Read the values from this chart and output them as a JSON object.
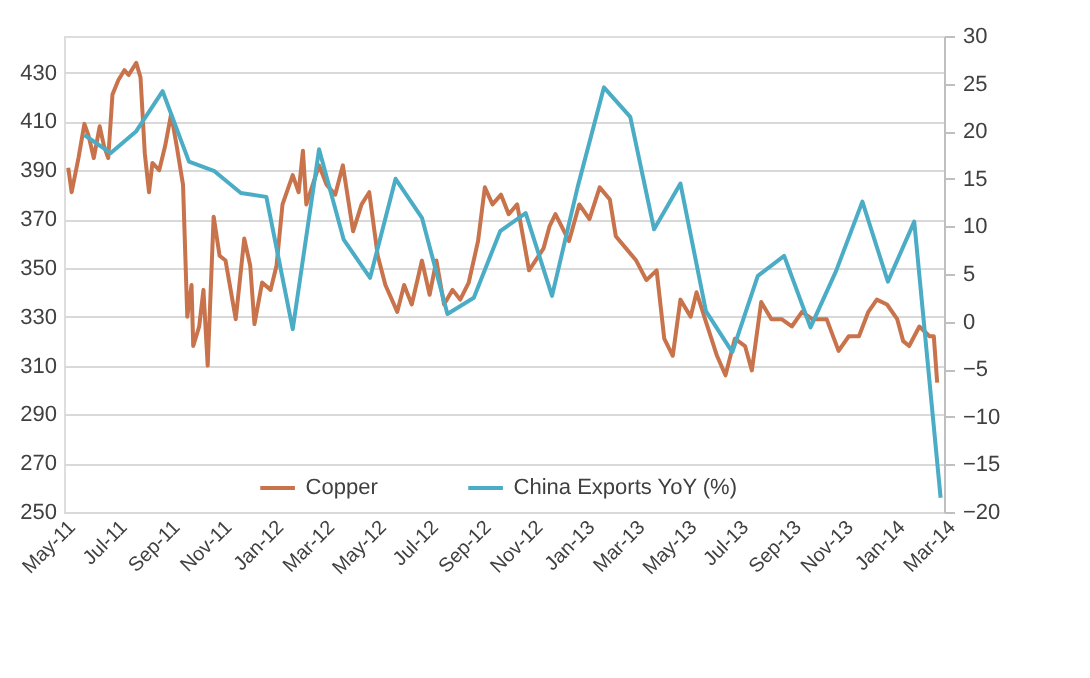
{
  "chart_data": {
    "type": "line",
    "xlim": [
      "2011-05-01",
      "2014-03-01"
    ],
    "xticks": [
      {
        "value": "2011-05-01",
        "label": "May-11"
      },
      {
        "value": "2011-07-01",
        "label": "Jul-11"
      },
      {
        "value": "2011-09-01",
        "label": "Sep-11"
      },
      {
        "value": "2011-11-01",
        "label": "Nov-11"
      },
      {
        "value": "2012-01-01",
        "label": "Jan-12"
      },
      {
        "value": "2012-03-01",
        "label": "Mar-12"
      },
      {
        "value": "2012-05-01",
        "label": "May-12"
      },
      {
        "value": "2012-07-01",
        "label": "Jul-12"
      },
      {
        "value": "2012-09-01",
        "label": "Sep-12"
      },
      {
        "value": "2012-11-01",
        "label": "Nov-12"
      },
      {
        "value": "2013-01-01",
        "label": "Jan-13"
      },
      {
        "value": "2013-03-01",
        "label": "Mar-13"
      },
      {
        "value": "2013-05-01",
        "label": "May-13"
      },
      {
        "value": "2013-07-01",
        "label": "Jul-13"
      },
      {
        "value": "2013-09-01",
        "label": "Sep-13"
      },
      {
        "value": "2013-11-01",
        "label": "Nov-13"
      },
      {
        "value": "2014-01-01",
        "label": "Jan-14"
      },
      {
        "value": "2014-03-01",
        "label": "Mar-14"
      }
    ],
    "ylim": [
      250,
      445
    ],
    "yticks": [
      250,
      270,
      290,
      310,
      330,
      350,
      370,
      390,
      410,
      430
    ],
    "y2lim": [
      -20,
      30
    ],
    "y2ticks": [
      -20,
      -15,
      -10,
      -5,
      0,
      5,
      10,
      15,
      20,
      25,
      30
    ],
    "grid": "y",
    "legend": "bottom",
    "line_style": "solid",
    "marker": "none",
    "series": [
      {
        "name": "Copper",
        "color": "#c8734b",
        "x": [
          "2011-05-06",
          "2011-05-10",
          "2011-05-18",
          "2011-05-25",
          "2011-05-30",
          "2011-06-05",
          "2011-06-12",
          "2011-06-17",
          "2011-06-22",
          "2011-06-27",
          "2011-07-04",
          "2011-07-11",
          "2011-07-16",
          "2011-07-25",
          "2011-07-30",
          "2011-08-04",
          "2011-08-09",
          "2011-08-13",
          "2011-08-21",
          "2011-08-28",
          "2011-09-04",
          "2011-09-11",
          "2011-09-18",
          "2011-09-23",
          "2011-09-28",
          "2011-09-30",
          "2011-10-07",
          "2011-10-12",
          "2011-10-17",
          "2011-10-24",
          "2011-10-31",
          "2011-11-07",
          "2011-11-19",
          "2011-11-29",
          "2011-12-06",
          "2011-12-11",
          "2011-12-20",
          "2011-12-30",
          "2012-01-06",
          "2012-01-13",
          "2012-01-25",
          "2012-02-01",
          "2012-02-06",
          "2012-02-10",
          "2012-02-25",
          "2012-03-05",
          "2012-03-15",
          "2012-03-24",
          "2012-04-05",
          "2012-04-15",
          "2012-04-24",
          "2012-05-04",
          "2012-05-13",
          "2012-05-27",
          "2012-06-04",
          "2012-06-13",
          "2012-06-25",
          "2012-07-04",
          "2012-07-12",
          "2012-07-21",
          "2012-07-31",
          "2012-08-09",
          "2012-08-19",
          "2012-08-30",
          "2012-09-07",
          "2012-09-16",
          "2012-09-26",
          "2012-10-05",
          "2012-10-15",
          "2012-10-29",
          "2012-11-15",
          "2012-11-22",
          "2012-11-29",
          "2012-12-15",
          "2012-12-27",
          "2013-01-08",
          "2013-01-20",
          "2013-02-01",
          "2013-02-08",
          "2013-02-20",
          "2013-03-04",
          "2013-03-16",
          "2013-03-28",
          "2013-04-06",
          "2013-04-16",
          "2013-04-25",
          "2013-05-07",
          "2013-05-14",
          "2013-05-24",
          "2013-06-07",
          "2013-06-17",
          "2013-06-28",
          "2013-07-10",
          "2013-07-18",
          "2013-07-29",
          "2013-08-10",
          "2013-08-22",
          "2013-09-03",
          "2013-09-15",
          "2013-09-27",
          "2013-10-14",
          "2013-10-28",
          "2013-11-09",
          "2013-11-21",
          "2013-12-02",
          "2013-12-12",
          "2013-12-24",
          "2014-01-05",
          "2014-01-12",
          "2014-01-19",
          "2014-01-31",
          "2014-02-12",
          "2014-02-17",
          "2014-02-21"
        ],
        "values": [
          391,
          381,
          395,
          409,
          404,
          395,
          408,
          400,
          395,
          421,
          427,
          431,
          429,
          434,
          428,
          397,
          381,
          393,
          390,
          400,
          413,
          399,
          384,
          330,
          343,
          318,
          326,
          341,
          310,
          371,
          355,
          353,
          329,
          362,
          351,
          327,
          344,
          341,
          351,
          376,
          388,
          381,
          398,
          376,
          392,
          384,
          380,
          392,
          365,
          376,
          381,
          355,
          343,
          332,
          343,
          335,
          353,
          339,
          353,
          335,
          341,
          337,
          344,
          361,
          383,
          376,
          380,
          372,
          376,
          349,
          358,
          367,
          372,
          361,
          376,
          370,
          383,
          378,
          363,
          358,
          353,
          345,
          349,
          321,
          314,
          337,
          330,
          340,
          329,
          314,
          306,
          321,
          318,
          308,
          336,
          329,
          329,
          326,
          332,
          329,
          329,
          316,
          322,
          322,
          332,
          337,
          335,
          329,
          320,
          318,
          326,
          322,
          322,
          303
        ]
      },
      {
        "name": "China Exports YoY (%)",
        "color": "#4bacc6",
        "axis": "y2",
        "x": [
          "2011-05-25",
          "2011-06-25",
          "2011-07-25",
          "2011-08-25",
          "2011-09-25",
          "2011-10-25",
          "2011-11-25",
          "2011-12-25",
          "2012-01-25",
          "2012-02-25",
          "2012-03-25",
          "2012-04-25",
          "2012-05-25",
          "2012-06-25",
          "2012-07-25",
          "2012-08-25",
          "2012-09-25",
          "2012-10-25",
          "2012-11-25",
          "2012-12-25",
          "2013-01-25",
          "2013-02-25",
          "2013-03-25",
          "2013-04-25",
          "2013-05-25",
          "2013-06-25",
          "2013-07-25",
          "2013-08-25",
          "2013-09-25",
          "2013-10-25",
          "2013-11-25",
          "2013-12-25",
          "2014-01-25",
          "2014-02-25"
        ],
        "values": [
          19.6,
          17.7,
          20.0,
          24.2,
          16.8,
          15.8,
          13.5,
          13.1,
          -0.8,
          18.1,
          8.6,
          4.6,
          15.0,
          10.9,
          0.8,
          2.5,
          9.5,
          11.4,
          2.7,
          14.1,
          24.6,
          21.5,
          9.7,
          14.5,
          1.1,
          -3.2,
          4.8,
          6.9,
          -0.6,
          5.3,
          12.6,
          4.2,
          10.5,
          -18.5
        ]
      }
    ]
  }
}
